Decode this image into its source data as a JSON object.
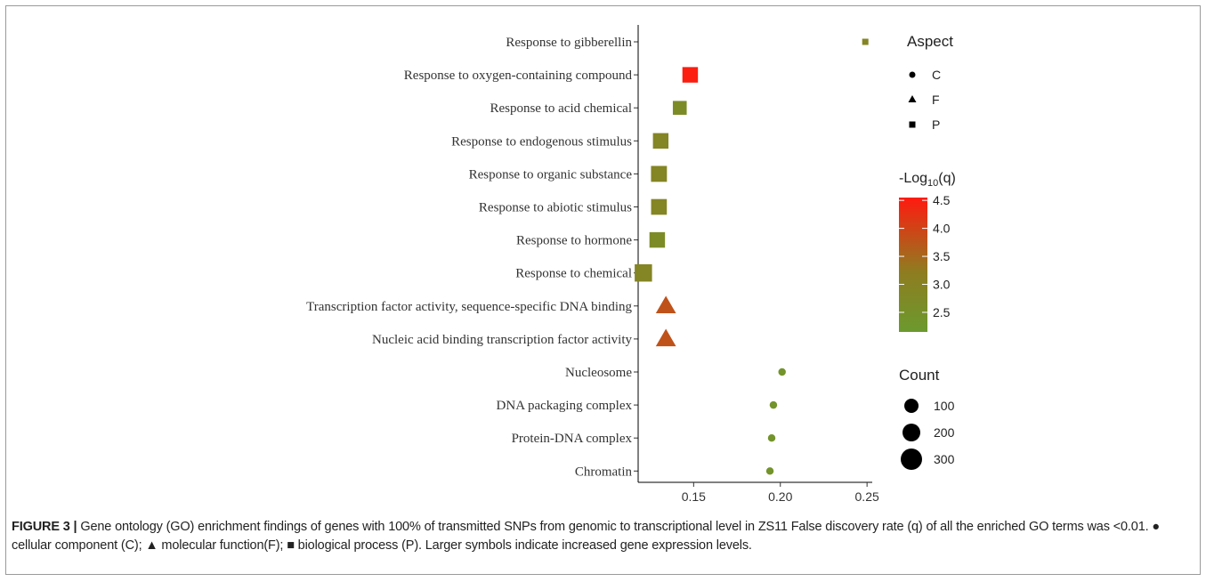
{
  "chart_data": {
    "type": "scatter",
    "y_categories": [
      "Response to gibberellin",
      "Response to oxygen-containing compound",
      "Response to acid chemical",
      "Response to endogenous stimulus",
      "Response to organic substance",
      "Response to abiotic stimulus",
      "Response to hormone",
      "Response to chemical",
      "Transcription factor activity, sequence-specific DNA binding",
      "Nucleic acid binding transcription factor activity",
      "Nucleosome",
      "DNA packaging complex",
      "Protein-DNA complex",
      "Chromatin"
    ],
    "points": [
      {
        "term": "Response to gibberellin",
        "x": 0.249,
        "aspect": "P",
        "count": 20,
        "neglog10q": 2.9
      },
      {
        "term": "Response to oxygen-containing compound",
        "x": 0.148,
        "aspect": "P",
        "count": 320,
        "neglog10q": 4.5
      },
      {
        "term": "Response to acid chemical",
        "x": 0.142,
        "aspect": "P",
        "count": 240,
        "neglog10q": 2.7
      },
      {
        "term": "Response to endogenous stimulus",
        "x": 0.131,
        "aspect": "P",
        "count": 320,
        "neglog10q": 2.9
      },
      {
        "term": "Response to organic substance",
        "x": 0.13,
        "aspect": "P",
        "count": 340,
        "neglog10q": 2.9
      },
      {
        "term": "Response to abiotic stimulus",
        "x": 0.13,
        "aspect": "P",
        "count": 330,
        "neglog10q": 2.9
      },
      {
        "term": "Response to hormone",
        "x": 0.129,
        "aspect": "P",
        "count": 320,
        "neglog10q": 2.7
      },
      {
        "term": "Response to chemical",
        "x": 0.121,
        "aspect": "P",
        "count": 420,
        "neglog10q": 2.9
      },
      {
        "term": "Transcription factor activity, sequence-specific DNA binding",
        "x": 0.134,
        "aspect": "F",
        "count": 320,
        "neglog10q": 3.8
      },
      {
        "term": "Nucleic acid binding transcription factor activity",
        "x": 0.134,
        "aspect": "F",
        "count": 320,
        "neglog10q": 3.8
      },
      {
        "term": "Nucleosome",
        "x": 0.201,
        "aspect": "C",
        "count": 40,
        "neglog10q": 2.4
      },
      {
        "term": "DNA packaging complex",
        "x": 0.196,
        "aspect": "C",
        "count": 40,
        "neglog10q": 2.4
      },
      {
        "term": "Protein-DNA complex",
        "x": 0.195,
        "aspect": "C",
        "count": 40,
        "neglog10q": 2.4
      },
      {
        "term": "Chromatin",
        "x": 0.194,
        "aspect": "C",
        "count": 40,
        "neglog10q": 2.4
      }
    ],
    "x_ticks": [
      "0.15",
      "0.20",
      "0.25"
    ],
    "x_tick_values": [
      0.15,
      0.2,
      0.25
    ],
    "xlim": [
      0.118,
      0.253
    ],
    "xlabel": "",
    "ylabel": "",
    "legend_aspect": {
      "title": "Aspect",
      "items": [
        {
          "label": "C",
          "shape": "circle"
        },
        {
          "label": "F",
          "shape": "triangle"
        },
        {
          "label": "P",
          "shape": "square"
        }
      ]
    },
    "legend_color": {
      "title_main": "-Log",
      "title_sub": "10",
      "title_end": "(q)",
      "ticks": [
        "4.5",
        "4.0",
        "3.5",
        "3.0",
        "2.5"
      ],
      "tick_values": [
        4.5,
        4.0,
        3.5,
        3.0,
        2.5
      ],
      "range": [
        2.15,
        4.55
      ],
      "low_color": "#6b9a2e",
      "mid_color": "#8f7c20",
      "high_color": "#ff1a10"
    },
    "legend_count": {
      "title": "Count",
      "items": [
        {
          "label": "100",
          "value": 100
        },
        {
          "label": "200",
          "value": 200
        },
        {
          "label": "300",
          "value": 300
        }
      ]
    }
  },
  "caption": {
    "label": "FIGURE 3 |",
    "text": " Gene ontology (GO) enrichment findings of genes with 100% of transmitted SNPs from genomic to transcriptional level in ZS11 False discovery rate (q) of all the enriched GO terms was <0.01. ● cellular component (C); ▲ molecular function(F); ■ biological process (P). Larger symbols indicate increased gene expression levels."
  }
}
